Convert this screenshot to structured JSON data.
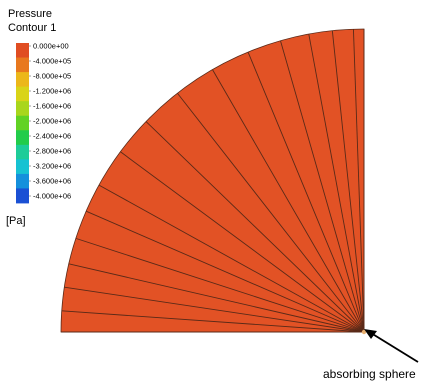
{
  "chart_data": {
    "type": "heatmap",
    "title": "Pressure",
    "subtitle": "Contour 1",
    "unit": "[Pa]",
    "annotation": "absorbing sphere",
    "field_value": 0.0,
    "field_color": "#e25225",
    "mesh_line_color": "#5a2a18",
    "colorbar": {
      "labels": [
        "0.000e+00",
        "-4.000e+05",
        "-8.000e+05",
        "-1.200e+06",
        "-1.600e+06",
        "-2.000e+06",
        "-2.400e+06",
        "-2.800e+06",
        "-3.200e+06",
        "-3.600e+06",
        "-4.000e+06"
      ],
      "colors": [
        "#e04d22",
        "#e8781e",
        "#ecb71a",
        "#d9d418",
        "#a9d61c",
        "#61d224",
        "#22cc4a",
        "#1ecc98",
        "#16c2d2",
        "#1490dc",
        "#1a50d4"
      ]
    },
    "sector_angles_deg": [
      0,
      4,
      8.5,
      13,
      18,
      23.5,
      29,
      36.5,
      44,
      52,
      60,
      67.5,
      74,
      79.5,
      84,
      88,
      90
    ]
  }
}
